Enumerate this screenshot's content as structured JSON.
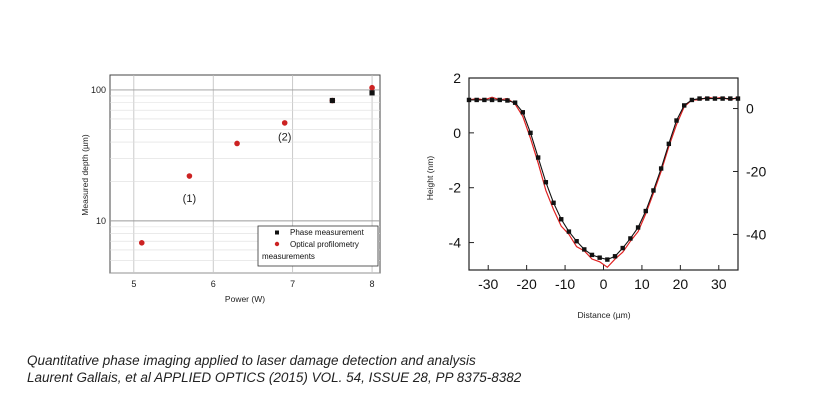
{
  "chart_data": [
    {
      "type": "scatter",
      "title": "",
      "xlabel": "Power (W)",
      "ylabel": "Measured depth (µm)",
      "xlim": [
        4.7,
        8.1
      ],
      "ylim": [
        4,
        130
      ],
      "y_scale": "log",
      "x_ticks": [
        "5",
        "6",
        "7",
        "8"
      ],
      "y_ticks": [
        "10",
        "100"
      ],
      "grid": true,
      "legend": "bottom-right",
      "series": [
        {
          "name": "Phase measurement",
          "marker": "square",
          "color": "#111111",
          "x": [
            7.5,
            8.0
          ],
          "y": [
            83,
            95
          ]
        },
        {
          "name": "Optical profilometry measurements",
          "marker": "circle",
          "color": "#cc2222",
          "x": [
            5.1,
            5.7,
            6.3,
            6.9,
            7.5,
            8.0
          ],
          "y": [
            6.8,
            22,
            39,
            56,
            83,
            104
          ]
        }
      ],
      "annotations": [
        {
          "text": "(1)",
          "x": 5.7,
          "y": 15
        },
        {
          "text": "(2)",
          "x": 6.9,
          "y": 44
        }
      ]
    },
    {
      "type": "line",
      "title": "",
      "xlabel": "Distance (µm)",
      "ylabel": "Height (nm)",
      "xlim": [
        -35,
        35
      ],
      "ylim": [
        -5,
        2
      ],
      "x_ticks": [
        "-30",
        "-20",
        "-10",
        "0",
        "10",
        "20",
        "30"
      ],
      "y_ticks": [
        "2",
        "0",
        "-2",
        "-4"
      ],
      "y2_ticks": [
        "0",
        "-20",
        "-40"
      ],
      "y2lim": [
        -51.3,
        9.7
      ],
      "grid": false,
      "series": [
        {
          "name": "",
          "marker": "square",
          "color": "#111111",
          "x": [
            -35,
            -33,
            -31,
            -29,
            -27,
            -25,
            -23,
            -21,
            -19,
            -17,
            -15,
            -13,
            -11,
            -9,
            -7,
            -5,
            -3,
            -1,
            1,
            3,
            5,
            7,
            9,
            11,
            13,
            15,
            17,
            19,
            21,
            23,
            25,
            27,
            29,
            31,
            33,
            35
          ],
          "y": [
            1.2,
            1.2,
            1.2,
            1.2,
            1.2,
            1.18,
            1.1,
            0.75,
            0.0,
            -0.9,
            -1.8,
            -2.55,
            -3.15,
            -3.6,
            -3.95,
            -4.25,
            -4.45,
            -4.55,
            -4.62,
            -4.5,
            -4.2,
            -3.85,
            -3.45,
            -2.85,
            -2.1,
            -1.3,
            -0.4,
            0.45,
            1.0,
            1.2,
            1.25,
            1.25,
            1.25,
            1.25,
            1.25,
            1.25
          ]
        },
        {
          "name": "",
          "marker": "none",
          "color": "#e02020",
          "x": [
            -35,
            -33,
            -31,
            -29,
            -27,
            -25,
            -23,
            -21,
            -19,
            -17,
            -15,
            -13,
            -11,
            -9,
            -7,
            -5,
            -3,
            -1,
            1,
            3,
            5,
            7,
            9,
            11,
            13,
            15,
            17,
            19,
            21,
            23,
            25,
            27,
            29,
            31,
            33,
            35
          ],
          "y": [
            1.2,
            1.25,
            1.2,
            1.3,
            1.2,
            1.25,
            1.05,
            0.6,
            -0.2,
            -1.1,
            -2.1,
            -2.8,
            -3.4,
            -3.7,
            -4.15,
            -4.3,
            -4.6,
            -4.7,
            -4.9,
            -4.6,
            -4.35,
            -3.95,
            -3.6,
            -2.95,
            -2.2,
            -1.4,
            -0.5,
            0.3,
            0.95,
            1.2,
            1.2,
            1.3,
            1.25,
            1.3,
            1.2,
            1.3
          ]
        }
      ]
    }
  ],
  "caption": {
    "line1": "Quantitative phase imaging applied to laser damage detection and analysis",
    "line2": "Laurent Gallais, et al APPLIED OPTICS (2015) VOL. 54, ISSUE 28, PP 8375-8382"
  }
}
